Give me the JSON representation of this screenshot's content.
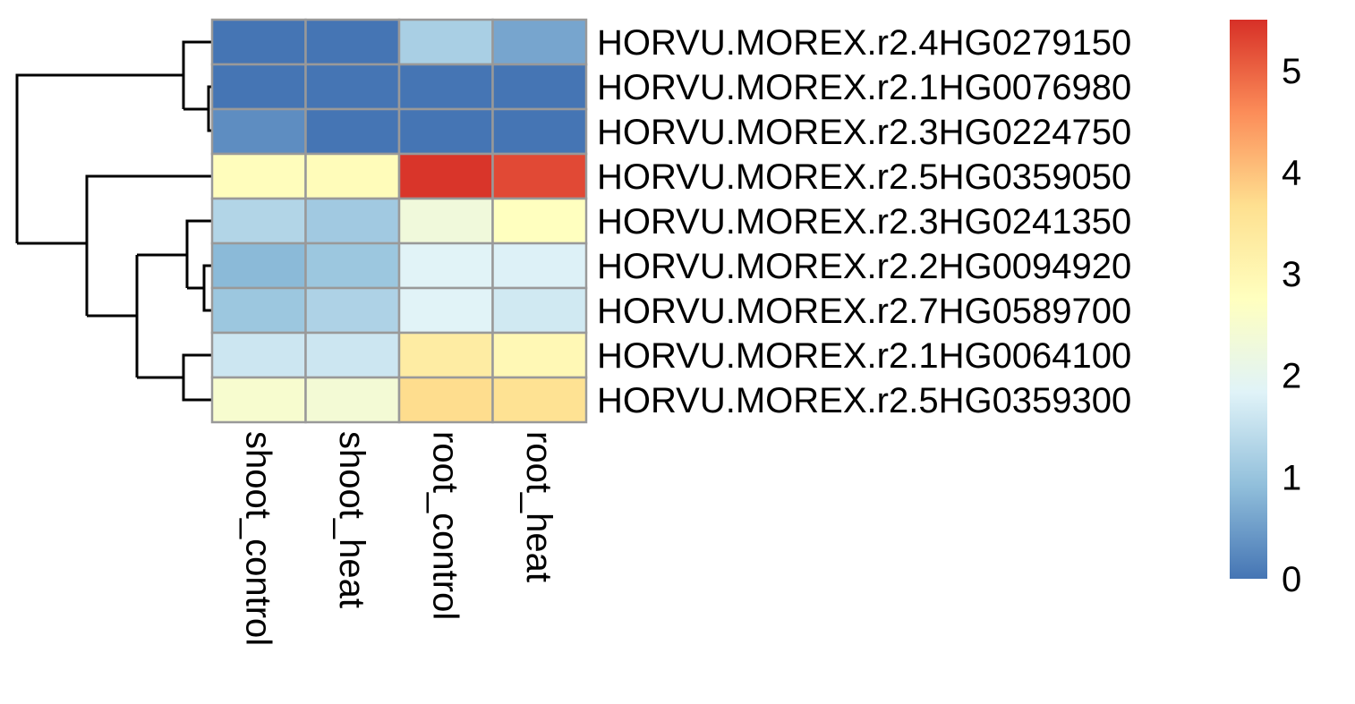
{
  "chart_data": {
    "type": "heatmap",
    "columns": [
      "shoot_control",
      "shoot_heat",
      "root_control",
      "root_heat"
    ],
    "rows": [
      {
        "label": "HORVU.MOREX.r2.4HG0279150",
        "values": [
          0.0,
          0.0,
          1.2,
          0.6
        ]
      },
      {
        "label": "HORVU.MOREX.r2.1HG0076980",
        "values": [
          0.0,
          0.0,
          0.0,
          0.0
        ]
      },
      {
        "label": "HORVU.MOREX.r2.3HG0224750",
        "values": [
          0.3,
          0.0,
          0.0,
          0.0
        ]
      },
      {
        "label": "HORVU.MOREX.r2.5HG0359050",
        "values": [
          2.8,
          2.85,
          5.45,
          5.25
        ]
      },
      {
        "label": "HORVU.MOREX.r2.3HG0241350",
        "values": [
          1.3,
          1.1,
          2.3,
          2.75
        ]
      },
      {
        "label": "HORVU.MOREX.r2.2HG0094920",
        "values": [
          0.85,
          1.05,
          1.85,
          1.8
        ]
      },
      {
        "label": "HORVU.MOREX.r2.7HG0589700",
        "values": [
          1.05,
          1.25,
          1.85,
          1.65
        ]
      },
      {
        "label": "HORVU.MOREX.r2.1HG0064100",
        "values": [
          1.6,
          1.6,
          3.3,
          2.95
        ]
      },
      {
        "label": "HORVU.MOREX.r2.5HG0359300",
        "values": [
          2.5,
          2.4,
          3.7,
          3.6
        ]
      }
    ],
    "colorbar": {
      "min": 0,
      "max": 5.5,
      "ticks": [
        "0",
        "1",
        "2",
        "3",
        "4",
        "5"
      ],
      "colors": [
        "#4575B4",
        "#91BFDB",
        "#E0F3F8",
        "#FFFFBF",
        "#FEE090",
        "#FC8D59",
        "#D73027"
      ]
    },
    "row_dendrogram": true,
    "cell_border_color": "#999999"
  }
}
